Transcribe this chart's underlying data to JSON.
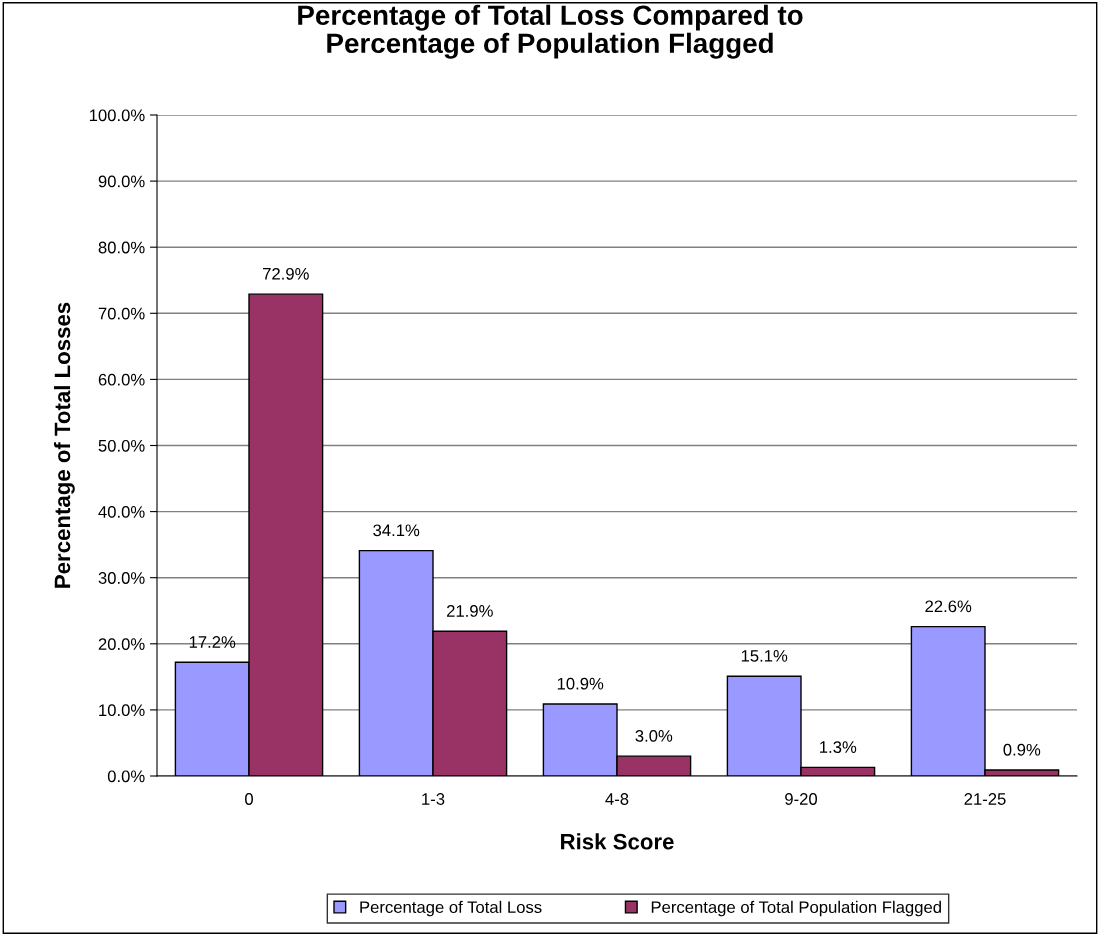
{
  "chart_data": {
    "type": "bar",
    "title": "Percentage of Total Loss Compared to\nPercentage of Population Flagged",
    "xlabel": "Risk Score",
    "ylabel": "Percentage of Total Losses",
    "categories": [
      "0",
      "1-3",
      "4-8",
      "9-20",
      "21-25"
    ],
    "series": [
      {
        "name": "Percentage of Total Loss",
        "color": "#9999ff",
        "values": [
          17.2,
          34.1,
          10.9,
          15.1,
          22.6
        ],
        "value_labels": [
          "17.2%",
          "34.1%",
          "10.9%",
          "15.1%",
          "22.6%"
        ]
      },
      {
        "name": "Percentage of Total Population Flagged",
        "color": "#993366",
        "values": [
          72.9,
          21.9,
          3.0,
          1.3,
          0.9
        ],
        "value_labels": [
          "72.9%",
          "21.9%",
          "3.0%",
          "1.3%",
          "0.9%"
        ]
      }
    ],
    "ylim": [
      0,
      100
    ],
    "yticks": [
      {
        "value": 0,
        "label": "0.0%"
      },
      {
        "value": 10,
        "label": "10.0%"
      },
      {
        "value": 20,
        "label": "20.0%"
      },
      {
        "value": 30,
        "label": "30.0%"
      },
      {
        "value": 40,
        "label": "40.0%"
      },
      {
        "value": 50,
        "label": "50.0%"
      },
      {
        "value": 60,
        "label": "60.0%"
      },
      {
        "value": 70,
        "label": "70.0%"
      },
      {
        "value": 80,
        "label": "80.0%"
      },
      {
        "value": 90,
        "label": "90.0%"
      },
      {
        "value": 100,
        "label": "100.0%"
      }
    ],
    "grid": "y",
    "legend": "bottom"
  }
}
